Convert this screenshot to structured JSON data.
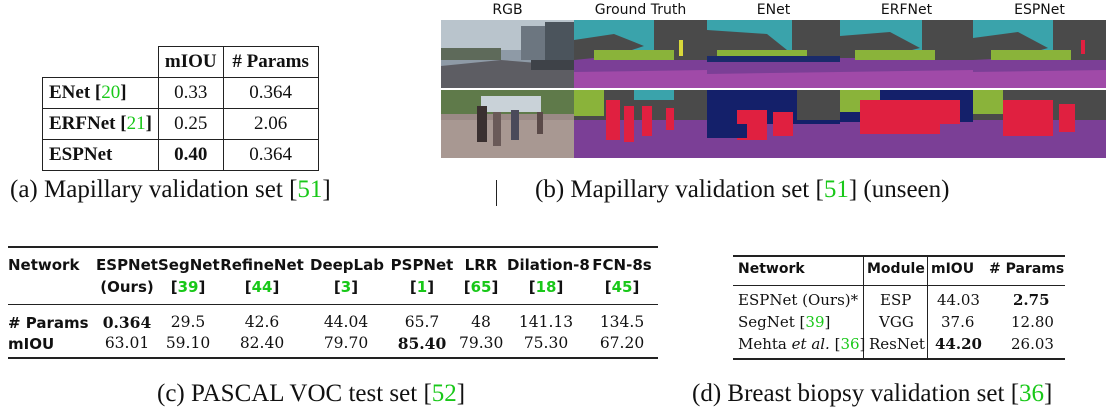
{
  "table_a": {
    "headers": [
      "",
      "mIOU",
      "# Params"
    ],
    "rows": [
      {
        "name": "ENet",
        "ref": "20",
        "miou": "0.33",
        "params": "0.364"
      },
      {
        "name": "ERFNet",
        "ref": "21",
        "miou": "0.25",
        "params": "2.06"
      },
      {
        "name": "ESPNet",
        "ref": "",
        "miou": "0.40",
        "params": "0.364"
      }
    ]
  },
  "grid_b": {
    "columns": [
      "RGB",
      "Ground Truth",
      "ENet",
      "ERFNet",
      "ESPNet"
    ]
  },
  "captions": {
    "a_prefix": "(a) Mapillary validation set [",
    "a_ref": "51",
    "a_suffix": "]",
    "b_prefix": "(b) Mapillary validation set [",
    "b_ref": "51",
    "b_suffix": "] (unseen)",
    "c_prefix": "(c) PASCAL VOC test set [",
    "c_ref": "52",
    "c_suffix": "]",
    "d_prefix": "(d) Breast biopsy validation set [",
    "d_ref": "36",
    "d_suffix": "]"
  },
  "table_c": {
    "row_label_header": "Network",
    "networks": [
      {
        "name": "ESPNet",
        "sub": "(Ours)",
        "ref": ""
      },
      {
        "name": "SegNet",
        "sub": "",
        "ref": "39"
      },
      {
        "name": "RefineNet",
        "sub": "",
        "ref": "44"
      },
      {
        "name": "DeepLab",
        "sub": "",
        "ref": "3"
      },
      {
        "name": "PSPNet",
        "sub": "",
        "ref": "1"
      },
      {
        "name": "LRR",
        "sub": "",
        "ref": "65"
      },
      {
        "name": "Dilation-8",
        "sub": "",
        "ref": "18"
      },
      {
        "name": "FCN-8s",
        "sub": "",
        "ref": "45"
      }
    ],
    "params_label": "# Params",
    "miou_label": "mIOU",
    "params": [
      "0.364",
      "29.5",
      "42.6",
      "44.04",
      "65.7",
      "48",
      "141.13",
      "134.5"
    ],
    "miou": [
      "63.01",
      "59.10",
      "82.40",
      "79.70",
      "85.40",
      "79.30",
      "75.30",
      "67.20"
    ]
  },
  "table_d": {
    "headers": [
      "Network",
      "Module",
      "mIOU",
      "# Params"
    ],
    "rows": [
      {
        "net_a": "ESPNet (Ours)*",
        "net_b": "",
        "ref": "",
        "module": "ESP",
        "miou": "44.03",
        "params": "2.75"
      },
      {
        "net_a": "SegNet [",
        "net_b": "]",
        "ref": "39",
        "module": "VGG",
        "miou": "37.6",
        "params": "12.80"
      },
      {
        "net_a": "Mehta ",
        "net_et": "et al.",
        "net_b": "]",
        "ref": "36",
        "module": "ResNet",
        "miou": "44.20",
        "params": "26.03"
      }
    ]
  }
}
